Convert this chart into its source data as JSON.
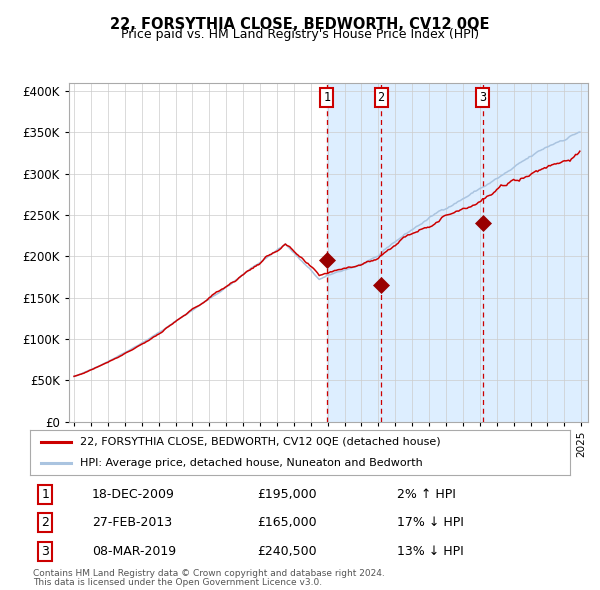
{
  "title": "22, FORSYTHIA CLOSE, BEDWORTH, CV12 0QE",
  "subtitle": "Price paid vs. HM Land Registry's House Price Index (HPI)",
  "legend_line1": "22, FORSYTHIA CLOSE, BEDWORTH, CV12 0QE (detached house)",
  "legend_line2": "HPI: Average price, detached house, Nuneaton and Bedworth",
  "footer1": "Contains HM Land Registry data © Crown copyright and database right 2024.",
  "footer2": "This data is licensed under the Open Government Licence v3.0.",
  "transactions": [
    {
      "num": 1,
      "date": "18-DEC-2009",
      "price": 195000,
      "pct": "2%",
      "dir": "↑"
    },
    {
      "num": 2,
      "date": "27-FEB-2013",
      "price": 165000,
      "pct": "17%",
      "dir": "↓"
    },
    {
      "num": 3,
      "date": "08-MAR-2019",
      "price": 240500,
      "pct": "13%",
      "dir": "↓"
    }
  ],
  "transaction_dates_decimal": [
    2009.96,
    2013.16,
    2019.18
  ],
  "transaction_prices": [
    195000,
    165000,
    240500
  ],
  "hpi_line_color": "#aac4e0",
  "price_line_color": "#cc0000",
  "marker_color": "#990000",
  "vline_color": "#cc0000",
  "shade_color": "#ddeeff",
  "background_color": "#ffffff",
  "grid_color": "#cccccc",
  "ylim": [
    0,
    410000
  ],
  "yticks": [
    0,
    50000,
    100000,
    150000,
    200000,
    250000,
    300000,
    350000,
    400000
  ],
  "xlim_start": 1994.7,
  "xlim_end": 2025.4
}
